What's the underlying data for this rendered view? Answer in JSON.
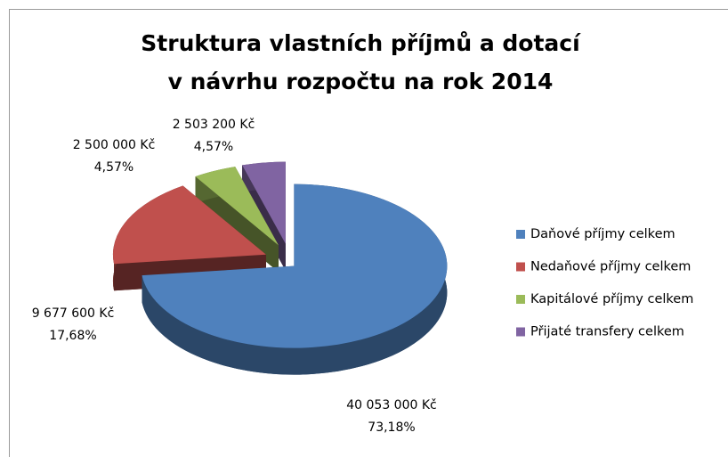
{
  "chart_data": {
    "type": "pie",
    "title": [
      "Struktura vlastních příjmů a dotací",
      "v návrhu rozpočtu na rok 2014"
    ],
    "categories": [
      "Daňové příjmy celkem",
      "Nedaňové příjmy celkem",
      "Kapitálové příjmy celkem",
      "Přijaté transfery celkem"
    ],
    "values": [
      40053000,
      9677600,
      2500000,
      2503200
    ],
    "value_labels": [
      "40 053 000 Kč",
      "9 677 600 Kč",
      "2 500 000 Kč",
      "2 503 200 Kč"
    ],
    "percent_labels": [
      "73,18%",
      "17,68%",
      "4,57%",
      "4,57%"
    ],
    "colors": [
      "#4f81bd",
      "#c0504d",
      "#9bbb59",
      "#8064a2"
    ],
    "legend": "right"
  }
}
